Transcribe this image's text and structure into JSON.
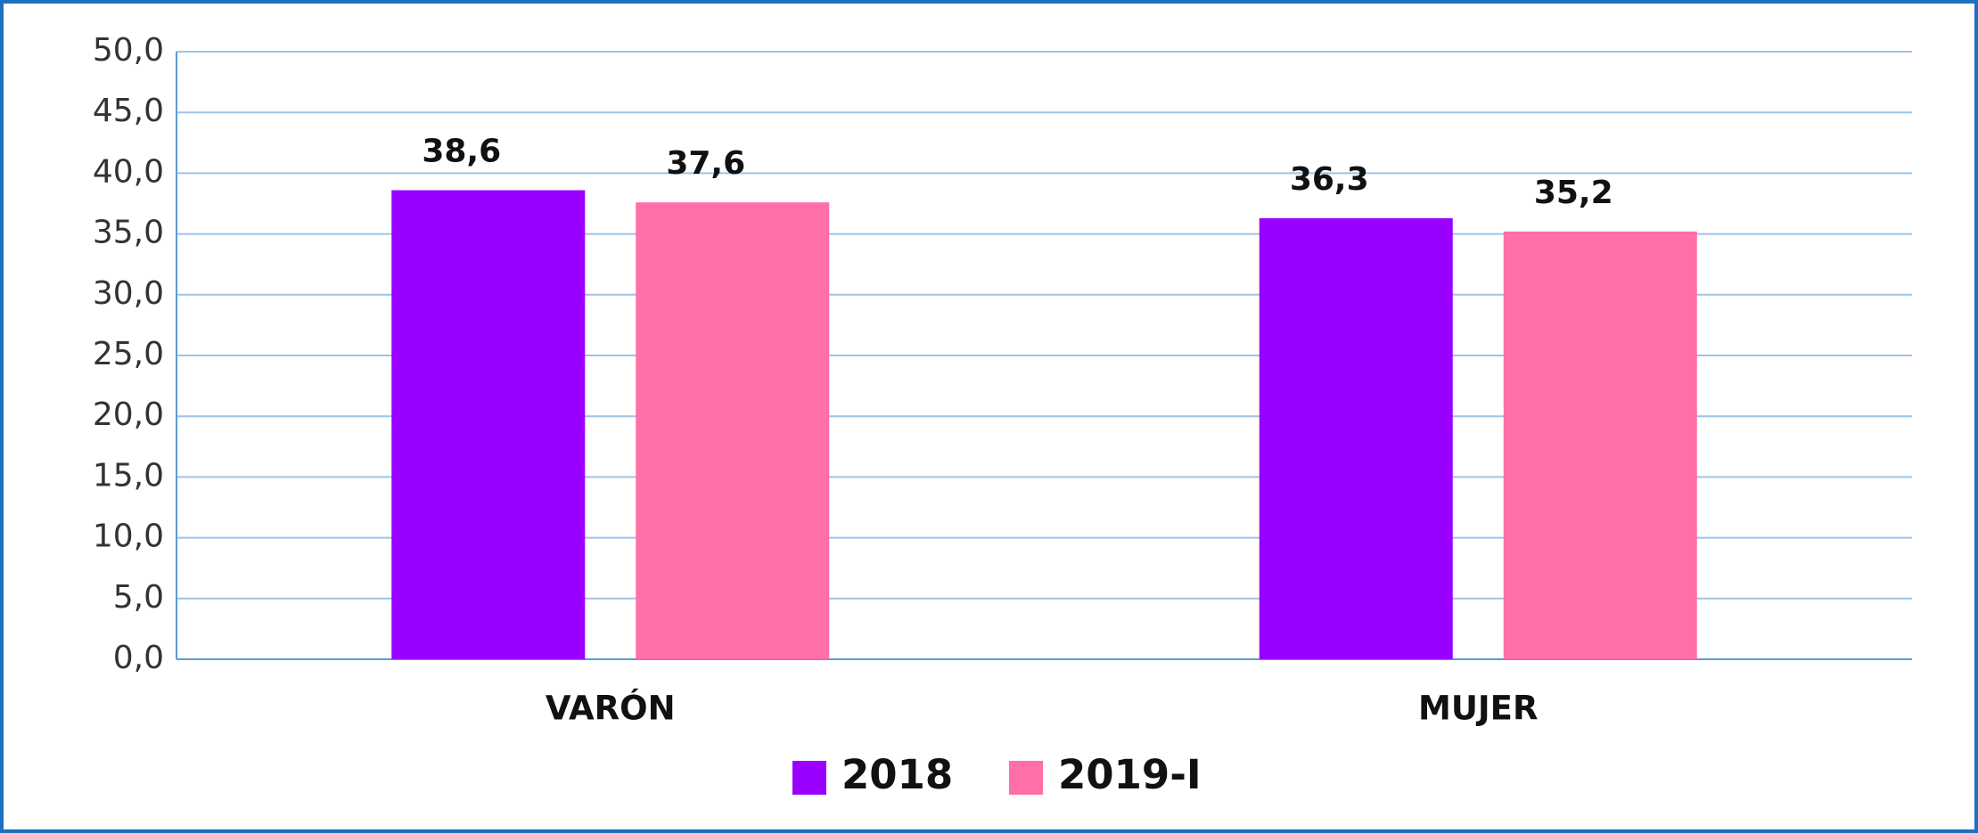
{
  "chart_data": {
    "type": "bar",
    "categories": [
      "VARÓN",
      "MUJER"
    ],
    "series": [
      {
        "name": "2018",
        "color": "#9900ff",
        "values": [
          38.6,
          36.3
        ],
        "value_labels": [
          "38,6",
          "36,3"
        ]
      },
      {
        "name": "2019-I",
        "color": "#ff6fa8",
        "values": [
          37.6,
          35.2
        ],
        "value_labels": [
          "37,6",
          "35,2"
        ]
      }
    ],
    "ylim": [
      0,
      50
    ],
    "yticks": [
      {
        "value": 0,
        "label": "0,0"
      },
      {
        "value": 5,
        "label": "5,0"
      },
      {
        "value": 10,
        "label": "10,0"
      },
      {
        "value": 15,
        "label": "15,0"
      },
      {
        "value": 20,
        "label": "20,0"
      },
      {
        "value": 25,
        "label": "25,0"
      },
      {
        "value": 30,
        "label": "30,0"
      },
      {
        "value": 35,
        "label": "35,0"
      },
      {
        "value": 40,
        "label": "40,0"
      },
      {
        "value": 45,
        "label": "45,0"
      },
      {
        "value": 50,
        "label": "50,0"
      }
    ],
    "grid": true,
    "legend": "bottom"
  }
}
